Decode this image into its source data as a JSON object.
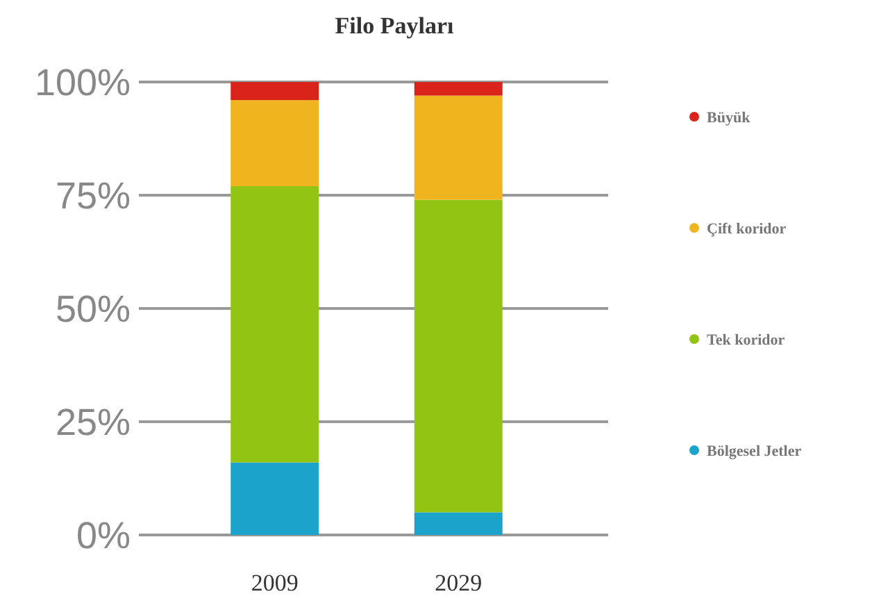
{
  "chart_data": {
    "type": "bar",
    "title": "Filo Payları",
    "categories": [
      "2009",
      "2029"
    ],
    "stacked": true,
    "ylim": [
      0,
      100
    ],
    "yticks": [
      {
        "value": 0,
        "label": "0%"
      },
      {
        "value": 25,
        "label": "25%"
      },
      {
        "value": 50,
        "label": "50%"
      },
      {
        "value": 75,
        "label": "75%"
      },
      {
        "value": 100,
        "label": "100%"
      }
    ],
    "grid": "y",
    "legend": "right",
    "series": [
      {
        "name": "Bölgesel Jetler",
        "color": "#1ba3cc",
        "values": [
          16,
          5
        ]
      },
      {
        "name": "Tek koridor",
        "color": "#92c414",
        "values": [
          61,
          69
        ]
      },
      {
        "name": "Çift koridor",
        "color": "#f0b51e",
        "values": [
          19,
          23
        ]
      },
      {
        "name": "Büyük",
        "color": "#d9231b",
        "values": [
          4,
          3
        ]
      }
    ]
  }
}
